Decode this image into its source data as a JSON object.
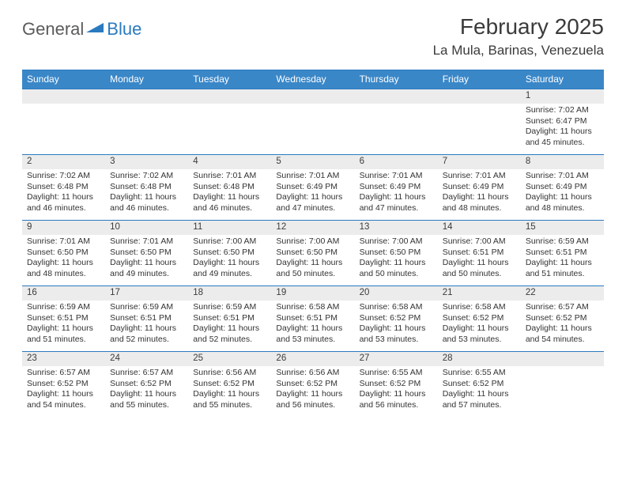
{
  "logo": {
    "part1": "General",
    "part2": "Blue"
  },
  "title": "February 2025",
  "location": "La Mula, Barinas, Venezuela",
  "colors": {
    "header_bg": "#3a87c8",
    "rule": "#2a7ac0",
    "daynum_bg": "#ececec",
    "text": "#333333",
    "logo_gray": "#5b5b5b",
    "logo_blue": "#2a7ac0"
  },
  "dayNames": [
    "Sunday",
    "Monday",
    "Tuesday",
    "Wednesday",
    "Thursday",
    "Friday",
    "Saturday"
  ],
  "weeks": [
    [
      null,
      null,
      null,
      null,
      null,
      null,
      {
        "n": "1",
        "sunrise": "7:02 AM",
        "sunset": "6:47 PM",
        "dlh": 11,
        "dlm": 45
      }
    ],
    [
      {
        "n": "2",
        "sunrise": "7:02 AM",
        "sunset": "6:48 PM",
        "dlh": 11,
        "dlm": 46
      },
      {
        "n": "3",
        "sunrise": "7:02 AM",
        "sunset": "6:48 PM",
        "dlh": 11,
        "dlm": 46
      },
      {
        "n": "4",
        "sunrise": "7:01 AM",
        "sunset": "6:48 PM",
        "dlh": 11,
        "dlm": 46
      },
      {
        "n": "5",
        "sunrise": "7:01 AM",
        "sunset": "6:49 PM",
        "dlh": 11,
        "dlm": 47
      },
      {
        "n": "6",
        "sunrise": "7:01 AM",
        "sunset": "6:49 PM",
        "dlh": 11,
        "dlm": 47
      },
      {
        "n": "7",
        "sunrise": "7:01 AM",
        "sunset": "6:49 PM",
        "dlh": 11,
        "dlm": 48
      },
      {
        "n": "8",
        "sunrise": "7:01 AM",
        "sunset": "6:49 PM",
        "dlh": 11,
        "dlm": 48
      }
    ],
    [
      {
        "n": "9",
        "sunrise": "7:01 AM",
        "sunset": "6:50 PM",
        "dlh": 11,
        "dlm": 48
      },
      {
        "n": "10",
        "sunrise": "7:01 AM",
        "sunset": "6:50 PM",
        "dlh": 11,
        "dlm": 49
      },
      {
        "n": "11",
        "sunrise": "7:00 AM",
        "sunset": "6:50 PM",
        "dlh": 11,
        "dlm": 49
      },
      {
        "n": "12",
        "sunrise": "7:00 AM",
        "sunset": "6:50 PM",
        "dlh": 11,
        "dlm": 50
      },
      {
        "n": "13",
        "sunrise": "7:00 AM",
        "sunset": "6:50 PM",
        "dlh": 11,
        "dlm": 50
      },
      {
        "n": "14",
        "sunrise": "7:00 AM",
        "sunset": "6:51 PM",
        "dlh": 11,
        "dlm": 50
      },
      {
        "n": "15",
        "sunrise": "6:59 AM",
        "sunset": "6:51 PM",
        "dlh": 11,
        "dlm": 51
      }
    ],
    [
      {
        "n": "16",
        "sunrise": "6:59 AM",
        "sunset": "6:51 PM",
        "dlh": 11,
        "dlm": 51
      },
      {
        "n": "17",
        "sunrise": "6:59 AM",
        "sunset": "6:51 PM",
        "dlh": 11,
        "dlm": 52
      },
      {
        "n": "18",
        "sunrise": "6:59 AM",
        "sunset": "6:51 PM",
        "dlh": 11,
        "dlm": 52
      },
      {
        "n": "19",
        "sunrise": "6:58 AM",
        "sunset": "6:51 PM",
        "dlh": 11,
        "dlm": 53
      },
      {
        "n": "20",
        "sunrise": "6:58 AM",
        "sunset": "6:52 PM",
        "dlh": 11,
        "dlm": 53
      },
      {
        "n": "21",
        "sunrise": "6:58 AM",
        "sunset": "6:52 PM",
        "dlh": 11,
        "dlm": 53
      },
      {
        "n": "22",
        "sunrise": "6:57 AM",
        "sunset": "6:52 PM",
        "dlh": 11,
        "dlm": 54
      }
    ],
    [
      {
        "n": "23",
        "sunrise": "6:57 AM",
        "sunset": "6:52 PM",
        "dlh": 11,
        "dlm": 54
      },
      {
        "n": "24",
        "sunrise": "6:57 AM",
        "sunset": "6:52 PM",
        "dlh": 11,
        "dlm": 55
      },
      {
        "n": "25",
        "sunrise": "6:56 AM",
        "sunset": "6:52 PM",
        "dlh": 11,
        "dlm": 55
      },
      {
        "n": "26",
        "sunrise": "6:56 AM",
        "sunset": "6:52 PM",
        "dlh": 11,
        "dlm": 56
      },
      {
        "n": "27",
        "sunrise": "6:55 AM",
        "sunset": "6:52 PM",
        "dlh": 11,
        "dlm": 56
      },
      {
        "n": "28",
        "sunrise": "6:55 AM",
        "sunset": "6:52 PM",
        "dlh": 11,
        "dlm": 57
      },
      null
    ]
  ],
  "labels": {
    "sunrise": "Sunrise:",
    "sunset": "Sunset:",
    "daylight": "Daylight:"
  }
}
